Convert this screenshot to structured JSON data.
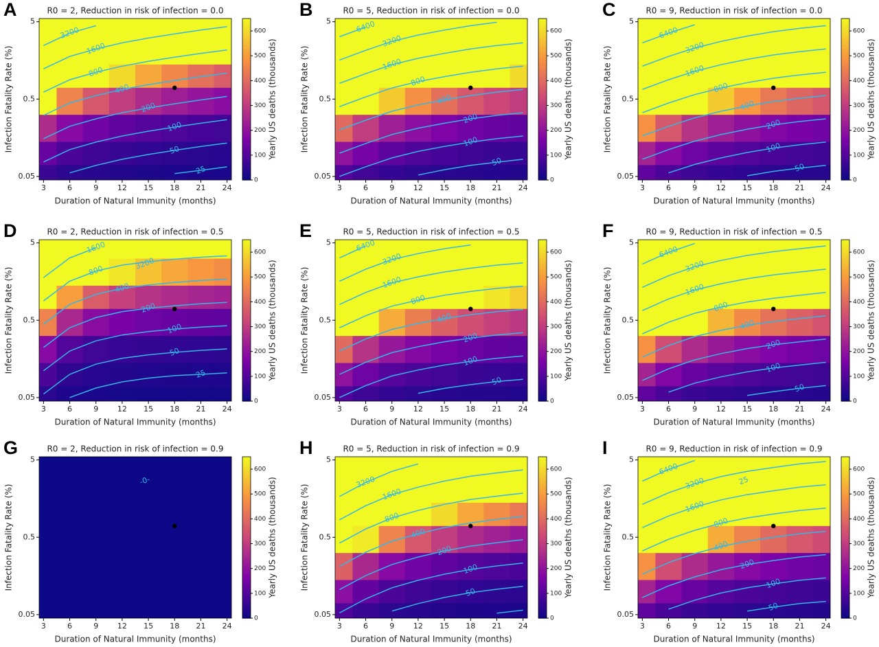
{
  "chart_data": [
    {
      "type": "heatmap",
      "panel": "A",
      "title": "R0 = 2, Reduction in risk of infection = 0.0",
      "x_label": "Duration of Natural Immunity (months)",
      "y_label": "Infection Fatality Rate (%)",
      "colorbar_label": "Yearly US deaths (thousands)",
      "colormap": "plasma",
      "log_y": true,
      "x": [
        3,
        6,
        9,
        12,
        15,
        18,
        21,
        24
      ],
      "y": [
        0.05,
        0.1,
        0.2,
        0.5,
        1,
        2,
        5
      ],
      "z": [
        [
          65,
          45,
          36,
          30,
          26,
          23,
          21,
          19
        ],
        [
          130,
          90,
          72,
          60,
          52,
          46,
          41,
          37
        ],
        [
          260,
          180,
          144,
          120,
          104,
          92,
          82,
          74
        ],
        [
          650,
          450,
          360,
          300,
          260,
          230,
          205,
          185
        ],
        [
          1300,
          900,
          720,
          600,
          520,
          460,
          410,
          370
        ],
        [
          2600,
          1800,
          1440,
          1200,
          1040,
          920,
          820,
          740
        ],
        [
          6500,
          4500,
          3600,
          3000,
          2600,
          2300,
          2050,
          1850
        ]
      ],
      "xlim": [
        2.5,
        24.5
      ],
      "ylim": [
        0.045,
        5.5
      ],
      "xticks": [
        3,
        6,
        9,
        12,
        15,
        18,
        21,
        24
      ],
      "yticks": [
        0.05,
        0.5,
        5
      ],
      "clim": [
        0,
        650
      ],
      "cticks": [
        0,
        100,
        200,
        300,
        400,
        500,
        600
      ],
      "contour_levels": [
        25,
        50,
        100,
        200,
        400,
        800,
        1600,
        3200
      ],
      "point": {
        "x": 18,
        "y": 0.7
      }
    },
    {
      "type": "heatmap",
      "panel": "B",
      "title": "R0 = 5, Reduction in risk of infection = 0.0",
      "x_label": "Duration of Natural Immunity (months)",
      "y_label": "Infection Fatality Rate (%)",
      "colorbar_label": "Yearly US deaths (thousands)",
      "colormap": "plasma",
      "log_y": true,
      "x": [
        3,
        6,
        9,
        12,
        15,
        18,
        21,
        24
      ],
      "y": [
        0.05,
        0.1,
        0.2,
        0.5,
        1,
        2,
        5
      ],
      "z": [
        [
          100,
          75,
          58,
          48,
          41,
          36,
          33,
          30
        ],
        [
          200,
          150,
          115,
          95,
          82,
          72,
          65,
          60
        ],
        [
          400,
          300,
          230,
          190,
          164,
          144,
          130,
          120
        ],
        [
          1000,
          750,
          575,
          475,
          410,
          360,
          325,
          300
        ],
        [
          2000,
          1500,
          1150,
          950,
          820,
          720,
          650,
          600
        ],
        [
          4000,
          3000,
          2300,
          1900,
          1640,
          1440,
          1300,
          1200
        ],
        [
          10000,
          7500,
          5750,
          4750,
          4100,
          3600,
          3250,
          3000
        ]
      ],
      "xlim": [
        2.5,
        24.5
      ],
      "ylim": [
        0.045,
        5.5
      ],
      "xticks": [
        3,
        6,
        9,
        12,
        15,
        18,
        21,
        24
      ],
      "yticks": [
        0.05,
        0.5,
        5
      ],
      "clim": [
        0,
        650
      ],
      "cticks": [
        0,
        100,
        200,
        300,
        400,
        500,
        600
      ],
      "contour_levels": [
        50,
        100,
        200,
        400,
        800,
        1600,
        3200,
        6400
      ],
      "point": {
        "x": 18,
        "y": 0.7
      }
    },
    {
      "type": "heatmap",
      "panel": "C",
      "title": "R0 = 9, Reduction in risk of infection = 0.0",
      "x_label": "Duration of Natural Immunity (months)",
      "y_label": "Infection Fatality Rate (%)",
      "colorbar_label": "Yearly US deaths (thousands)",
      "colormap": "plasma",
      "log_y": true,
      "x": [
        3,
        6,
        9,
        12,
        15,
        18,
        21,
        24
      ],
      "y": [
        0.05,
        0.1,
        0.2,
        0.5,
        1,
        2,
        5
      ],
      "z": [
        [
          120,
          90,
          70,
          58,
          49,
          43,
          39,
          36
        ],
        [
          240,
          180,
          140,
          115,
          98,
          86,
          78,
          72
        ],
        [
          480,
          360,
          280,
          230,
          196,
          172,
          156,
          144
        ],
        [
          1200,
          900,
          700,
          575,
          490,
          430,
          390,
          360
        ],
        [
          2400,
          1800,
          1400,
          1150,
          980,
          860,
          780,
          720
        ],
        [
          4800,
          3600,
          2800,
          2300,
          1960,
          1720,
          1560,
          1440
        ],
        [
          12000,
          9000,
          7000,
          5750,
          4900,
          4300,
          3900,
          3600
        ]
      ],
      "xlim": [
        2.5,
        24.5
      ],
      "ylim": [
        0.045,
        5.5
      ],
      "xticks": [
        3,
        6,
        9,
        12,
        15,
        18,
        21,
        24
      ],
      "yticks": [
        0.05,
        0.5,
        5
      ],
      "clim": [
        0,
        650
      ],
      "cticks": [
        0,
        100,
        200,
        300,
        400,
        500,
        600
      ],
      "contour_levels": [
        50,
        100,
        200,
        400,
        800,
        1600,
        3200,
        6400
      ],
      "point": {
        "x": 18,
        "y": 0.7
      }
    },
    {
      "type": "heatmap",
      "panel": "D",
      "title": "R0 = 2, Reduction in risk of infection = 0.5",
      "x_label": "Duration of Natural Immunity (months)",
      "y_label": "Infection Fatality Rate (%)",
      "colorbar_label": "Yearly US deaths (thousands)",
      "colormap": "plasma",
      "log_y": true,
      "x": [
        3,
        6,
        9,
        12,
        15,
        18,
        21,
        24
      ],
      "y": [
        0.05,
        0.1,
        0.2,
        0.5,
        1,
        2,
        5
      ],
      "z": [
        [
          45,
          25,
          19,
          16,
          14,
          13,
          12,
          12
        ],
        [
          90,
          50,
          37,
          31,
          28,
          26,
          25,
          24
        ],
        [
          180,
          100,
          74,
          62,
          56,
          52,
          49,
          47
        ],
        [
          450,
          250,
          185,
          155,
          140,
          130,
          123,
          118
        ],
        [
          900,
          500,
          370,
          310,
          280,
          260,
          245,
          235
        ],
        [
          1800,
          1000,
          740,
          620,
          560,
          520,
          490,
          470
        ],
        [
          4500,
          2500,
          1850,
          1550,
          1400,
          1300,
          1225,
          1175
        ]
      ],
      "xlim": [
        2.5,
        24.5
      ],
      "ylim": [
        0.045,
        5.5
      ],
      "xticks": [
        3,
        6,
        9,
        12,
        15,
        18,
        21,
        24
      ],
      "yticks": [
        0.05,
        0.5,
        5
      ],
      "clim": [
        0,
        650
      ],
      "cticks": [
        0,
        100,
        200,
        300,
        400,
        500,
        600
      ],
      "contour_levels": [
        25,
        50,
        100,
        200,
        400,
        800,
        1600,
        3200
      ],
      "point": {
        "x": 18,
        "y": 0.7
      }
    },
    {
      "type": "heatmap",
      "panel": "E",
      "title": "R0 = 5, Reduction in risk of infection = 0.5",
      "x_label": "Duration of Natural Immunity (months)",
      "y_label": "Infection Fatality Rate (%)",
      "colorbar_label": "Yearly US deaths (thousands)",
      "colormap": "plasma",
      "log_y": true,
      "x": [
        3,
        6,
        9,
        12,
        15,
        18,
        21,
        24
      ],
      "y": [
        0.05,
        0.1,
        0.2,
        0.5,
        1,
        2,
        5
      ],
      "z": [
        [
          100,
          70,
          53,
          44,
          38,
          34,
          31,
          29
        ],
        [
          200,
          140,
          105,
          88,
          76,
          68,
          62,
          58
        ],
        [
          400,
          280,
          210,
          176,
          152,
          136,
          124,
          116
        ],
        [
          1000,
          700,
          525,
          440,
          380,
          340,
          310,
          290
        ],
        [
          2000,
          1400,
          1050,
          880,
          760,
          680,
          620,
          580
        ],
        [
          4000,
          2800,
          2100,
          1760,
          1520,
          1360,
          1240,
          1160
        ],
        [
          10000,
          7000,
          5250,
          4400,
          3800,
          3400,
          3100,
          2900
        ]
      ],
      "xlim": [
        2.5,
        24.5
      ],
      "ylim": [
        0.045,
        5.5
      ],
      "xticks": [
        3,
        6,
        9,
        12,
        15,
        18,
        21,
        24
      ],
      "yticks": [
        0.05,
        0.5,
        5
      ],
      "clim": [
        0,
        650
      ],
      "cticks": [
        0,
        100,
        200,
        300,
        400,
        500,
        600
      ],
      "contour_levels": [
        50,
        100,
        200,
        400,
        800,
        1600,
        3200,
        6400
      ],
      "point": {
        "x": 18,
        "y": 0.7
      }
    },
    {
      "type": "heatmap",
      "panel": "F",
      "title": "R0 = 9, Reduction in risk of infection = 0.5",
      "x_label": "Duration of Natural Immunity (months)",
      "y_label": "Infection Fatality Rate (%)",
      "colorbar_label": "Yearly US deaths (thousands)",
      "colormap": "plasma",
      "log_y": true,
      "x": [
        3,
        6,
        9,
        12,
        15,
        18,
        21,
        24
      ],
      "y": [
        0.05,
        0.1,
        0.2,
        0.5,
        1,
        2,
        5
      ],
      "z": [
        [
          120,
          85,
          65,
          54,
          47,
          42,
          38,
          35
        ],
        [
          240,
          170,
          130,
          108,
          93,
          83,
          76,
          70
        ],
        [
          480,
          340,
          260,
          216,
          186,
          166,
          152,
          140
        ],
        [
          1200,
          850,
          650,
          540,
          465,
          415,
          380,
          350
        ],
        [
          2400,
          1700,
          1300,
          1080,
          930,
          830,
          760,
          700
        ],
        [
          4800,
          3400,
          2600,
          2160,
          1860,
          1660,
          1520,
          1400
        ],
        [
          12000,
          8500,
          6500,
          5400,
          4650,
          4150,
          3800,
          3500
        ]
      ],
      "xlim": [
        2.5,
        24.5
      ],
      "ylim": [
        0.045,
        5.5
      ],
      "xticks": [
        3,
        6,
        9,
        12,
        15,
        18,
        21,
        24
      ],
      "yticks": [
        0.05,
        0.5,
        5
      ],
      "clim": [
        0,
        650
      ],
      "cticks": [
        0,
        100,
        200,
        300,
        400,
        500,
        600
      ],
      "contour_levels": [
        50,
        100,
        200,
        400,
        800,
        1600,
        3200,
        6400
      ],
      "point": {
        "x": 18,
        "y": 0.7
      }
    },
    {
      "type": "heatmap",
      "panel": "G",
      "title": "R0 = 2, Reduction in risk of infection = 0.9",
      "x_label": "Duration of Natural Immunity (months)",
      "y_label": "Infection Fatality Rate (%)",
      "colorbar_label": "Yearly US deaths (thousands)",
      "colormap": "plasma",
      "log_y": true,
      "x": [
        3,
        6,
        9,
        12,
        15,
        18,
        21,
        24
      ],
      "y": [
        0.05,
        0.1,
        0.2,
        0.5,
        1,
        2,
        5
      ],
      "z": [
        [
          0,
          0,
          0,
          0,
          0,
          0,
          0,
          0
        ],
        [
          0,
          0,
          0,
          0,
          0,
          0,
          0,
          0
        ],
        [
          0,
          0,
          0,
          0,
          0,
          0,
          0,
          0
        ],
        [
          0,
          0,
          0,
          0,
          0,
          0,
          0,
          0
        ],
        [
          0,
          0,
          0,
          0,
          0,
          0,
          0,
          0
        ],
        [
          0,
          0,
          0,
          0,
          0,
          0,
          0,
          0
        ],
        [
          0,
          0,
          0,
          0,
          0,
          0,
          0,
          0
        ]
      ],
      "xlim": [
        2.5,
        24.5
      ],
      "ylim": [
        0.045,
        5.5
      ],
      "xticks": [
        3,
        6,
        9,
        12,
        15,
        18,
        21,
        24
      ],
      "yticks": [
        0.05,
        0.5,
        5
      ],
      "clim": [
        0,
        650
      ],
      "cticks": [
        0,
        100,
        200,
        300,
        400,
        500,
        600
      ],
      "contour_levels": [
        {
          "value": 0,
          "label": "-0-"
        }
      ],
      "point": {
        "x": 18,
        "y": 0.7
      }
    },
    {
      "type": "heatmap",
      "panel": "H",
      "title": "R0 = 5, Reduction in risk of infection = 0.9",
      "x_label": "Duration of Natural Immunity (months)",
      "y_label": "Infection Fatality Rate (%)",
      "colorbar_label": "Yearly US deaths (thousands)",
      "colormap": "plasma",
      "log_y": true,
      "x": [
        3,
        6,
        9,
        12,
        15,
        18,
        21,
        24
      ],
      "y": [
        0.05,
        0.1,
        0.2,
        0.5,
        1,
        2,
        5
      ],
      "z": [
        [
          95,
          63,
          45,
          36,
          30,
          26,
          24,
          22
        ],
        [
          190,
          125,
          90,
          72,
          60,
          52,
          47,
          43
        ],
        [
          380,
          250,
          180,
          144,
          120,
          104,
          94,
          86
        ],
        [
          950,
          625,
          450,
          360,
          300,
          260,
          235,
          215
        ],
        [
          1900,
          1250,
          900,
          720,
          600,
          520,
          470,
          430
        ],
        [
          3800,
          2500,
          1800,
          1440,
          1200,
          1040,
          940,
          860
        ],
        [
          9500,
          6250,
          4500,
          3600,
          3000,
          2600,
          2350,
          2150
        ]
      ],
      "xlim": [
        2.5,
        24.5
      ],
      "ylim": [
        0.045,
        5.5
      ],
      "xticks": [
        3,
        6,
        9,
        12,
        15,
        18,
        21,
        24
      ],
      "yticks": [
        0.05,
        0.5,
        5
      ],
      "clim": [
        0,
        650
      ],
      "cticks": [
        0,
        100,
        200,
        300,
        400,
        500,
        600
      ],
      "contour_levels": [
        25,
        50,
        100,
        200,
        400,
        800,
        1600,
        3200
      ],
      "point": {
        "x": 18,
        "y": 0.7
      }
    },
    {
      "type": "heatmap",
      "panel": "I",
      "title": "R0 = 9, Reduction in risk of infection = 0.9",
      "x_label": "Duration of Natural Immunity (months)",
      "y_label": "Infection Fatality Rate (%)",
      "colorbar_label": "Yearly US deaths (thousands)",
      "colormap": "plasma",
      "log_y": true,
      "x": [
        3,
        6,
        9,
        12,
        15,
        18,
        21,
        24
      ],
      "y": [
        0.05,
        0.1,
        0.2,
        0.5,
        1,
        2,
        5
      ],
      "z": [
        [
          120,
          85,
          65,
          53,
          45,
          40,
          36,
          34
        ],
        [
          240,
          170,
          130,
          105,
          90,
          80,
          72,
          67
        ],
        [
          480,
          340,
          260,
          210,
          180,
          160,
          144,
          134
        ],
        [
          1200,
          850,
          650,
          525,
          450,
          400,
          360,
          335
        ],
        [
          2400,
          1700,
          1300,
          1050,
          900,
          800,
          720,
          670
        ],
        [
          4800,
          3400,
          2600,
          2100,
          1800,
          1600,
          1440,
          1340
        ],
        [
          12000,
          8500,
          6500,
          5250,
          4500,
          4000,
          3600,
          3350
        ]
      ],
      "xlim": [
        2.5,
        24.5
      ],
      "ylim": [
        0.045,
        5.5
      ],
      "xticks": [
        3,
        6,
        9,
        12,
        15,
        18,
        21,
        24
      ],
      "yticks": [
        0.05,
        0.5,
        5
      ],
      "clim": [
        0,
        650
      ],
      "cticks": [
        0,
        100,
        200,
        300,
        400,
        500,
        600
      ],
      "contour_levels": [
        25,
        50,
        100,
        200,
        400,
        800,
        1600,
        3200,
        6400
      ],
      "point": {
        "x": 18,
        "y": 0.7
      }
    }
  ]
}
